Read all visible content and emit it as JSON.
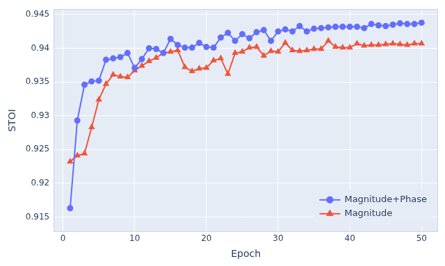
{
  "chart_data": {
    "type": "line",
    "x_label": "Epoch",
    "y_label": "STOI",
    "x": [
      1,
      2,
      3,
      4,
      5,
      6,
      7,
      8,
      9,
      10,
      11,
      12,
      13,
      14,
      15,
      16,
      17,
      18,
      19,
      20,
      21,
      22,
      23,
      24,
      25,
      26,
      27,
      28,
      29,
      30,
      31,
      32,
      33,
      34,
      35,
      36,
      37,
      38,
      39,
      40,
      41,
      42,
      43,
      44,
      45,
      46,
      47,
      48,
      49,
      50
    ],
    "series": [
      {
        "name": "Magnitude+Phase",
        "color": "#636efa",
        "marker": "circle",
        "line_style": "solid",
        "values": [
          0.9163,
          0.9293,
          0.9346,
          0.9351,
          0.9352,
          0.9383,
          0.9385,
          0.9387,
          0.9393,
          0.9371,
          0.9384,
          0.94,
          0.9399,
          0.9393,
          0.9414,
          0.9405,
          0.9401,
          0.9401,
          0.9408,
          0.9402,
          0.9401,
          0.9416,
          0.9423,
          0.9411,
          0.9421,
          0.9415,
          0.9424,
          0.9427,
          0.9411,
          0.9425,
          0.9428,
          0.9425,
          0.9433,
          0.9425,
          0.9429,
          0.943,
          0.9431,
          0.9432,
          0.9432,
          0.9432,
          0.9432,
          0.943,
          0.9436,
          0.9434,
          0.9433,
          0.9435,
          0.9437,
          0.9436,
          0.9436,
          0.9438
        ]
      },
      {
        "name": "Magnitude",
        "color": "#ef553b",
        "marker": "triangle",
        "line_style": "solid",
        "values": [
          0.9232,
          0.9241,
          0.9244,
          0.9283,
          0.9324,
          0.9347,
          0.9361,
          0.9358,
          0.9357,
          0.9367,
          0.9374,
          0.9381,
          0.9386,
          0.9393,
          0.9395,
          0.9397,
          0.9372,
          0.9366,
          0.937,
          0.9371,
          0.9382,
          0.9385,
          0.9362,
          0.9393,
          0.9395,
          0.9401,
          0.9402,
          0.9389,
          0.9396,
          0.9395,
          0.9408,
          0.9397,
          0.9396,
          0.9397,
          0.9399,
          0.9399,
          0.9411,
          0.9402,
          0.9401,
          0.9401,
          0.9407,
          0.9404,
          0.9405,
          0.9405,
          0.9406,
          0.9407,
          0.9406,
          0.9405,
          0.9407,
          0.9407
        ]
      }
    ],
    "xlim": [
      -1.3,
      52.3
    ],
    "xticks": [
      0,
      10,
      20,
      30,
      40,
      50
    ],
    "ylim": [
      0.9128,
      0.9458
    ],
    "yticks": [
      0.915,
      0.92,
      0.925,
      0.93,
      0.935,
      0.94,
      0.945
    ],
    "grid": true,
    "legend": "lower right"
  }
}
